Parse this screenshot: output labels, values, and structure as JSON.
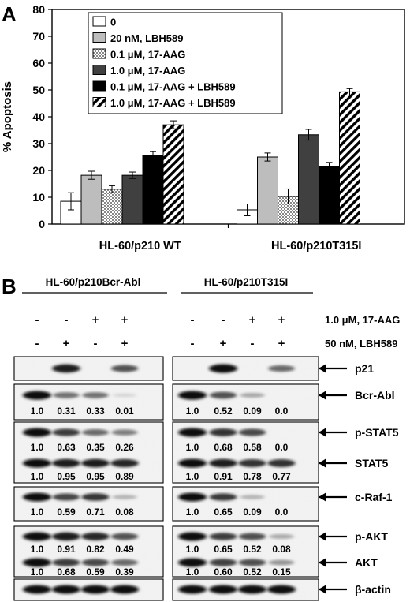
{
  "panel_a": {
    "label": "A",
    "chart_data": {
      "type": "bar",
      "xlabel": "",
      "ylabel": "% Apoptosis",
      "ylim": [
        0,
        80
      ],
      "yticks": [
        0,
        10,
        20,
        30,
        40,
        50,
        60,
        70,
        80
      ],
      "grid": false,
      "legend_position": "top-left",
      "categories": [
        "HL-60/p210 WT",
        "HL-60/p210T315I"
      ],
      "series": [
        {
          "name": "0",
          "values": [
            8.5,
            5.3
          ],
          "errors": [
            3.2,
            2.2
          ],
          "fill": "white"
        },
        {
          "name": "20 nM, LBH589",
          "values": [
            18.2,
            25.0
          ],
          "errors": [
            1.5,
            1.5
          ],
          "fill": "lightgray"
        },
        {
          "name": "0.1 μM, 17-AAG",
          "values": [
            13.0,
            10.3
          ],
          "errors": [
            1.3,
            2.8
          ],
          "fill": "checker"
        },
        {
          "name": "1.0 μM, 17-AAG",
          "values": [
            18.2,
            33.3
          ],
          "errors": [
            1.2,
            2.0
          ],
          "fill": "darkgray"
        },
        {
          "name": "0.1 μM, 17-AAG + LBH589",
          "values": [
            25.5,
            21.5
          ],
          "errors": [
            1.5,
            1.5
          ],
          "fill": "black"
        },
        {
          "name": "1.0 μM, 17-AAG + LBH589",
          "values": [
            37.0,
            49.3
          ],
          "errors": [
            1.5,
            1.2
          ],
          "fill": "hatch"
        }
      ]
    }
  },
  "panel_b": {
    "label": "B",
    "left_title": "HL-60/p210Bcr-Abl",
    "right_title": "HL-60/p210T315I",
    "treatments": [
      {
        "name": "1.0 μM, 17-AAG",
        "marks": [
          "-",
          "-",
          "+",
          "+"
        ]
      },
      {
        "name": "50 nM, LBH589",
        "marks": [
          "-",
          "+",
          "-",
          "+"
        ]
      }
    ],
    "blots": [
      {
        "name": "p21",
        "left_values": [],
        "right_values": []
      },
      {
        "name": "Bcr-Abl",
        "left_values": [
          "1.0",
          "0.31",
          "0.33",
          "0.01"
        ],
        "right_values": [
          "1.0",
          "0.52",
          "0.09",
          "0.0"
        ]
      },
      {
        "name": "p-STAT5",
        "left_values": [
          "1.0",
          "0.63",
          "0.35",
          "0.26"
        ],
        "right_values": [
          "1.0",
          "0.68",
          "0.58",
          "0.0"
        ]
      },
      {
        "name": "STAT5",
        "left_values": [
          "1.0",
          "0.95",
          "0.95",
          "0.89"
        ],
        "right_values": [
          "1.0",
          "0.91",
          "0.78",
          "0.77"
        ]
      },
      {
        "name": "c-Raf-1",
        "left_values": [
          "1.0",
          "0.59",
          "0.71",
          "0.08"
        ],
        "right_values": [
          "1.0",
          "0.65",
          "0.09",
          "0.0"
        ]
      },
      {
        "name": "p-AKT",
        "left_values": [
          "1.0",
          "0.91",
          "0.82",
          "0.49"
        ],
        "right_values": [
          "1.0",
          "0.65",
          "0.52",
          "0.08"
        ]
      },
      {
        "name": "AKT",
        "left_values": [
          "1.0",
          "0.68",
          "0.59",
          "0.39"
        ],
        "right_values": [
          "1.0",
          "0.60",
          "0.52",
          "0.15"
        ]
      },
      {
        "name": "β-actin",
        "left_values": [],
        "right_values": []
      }
    ],
    "band_intensities": {
      "p21": {
        "left": [
          0.0,
          0.95,
          0.0,
          0.7
        ],
        "right": [
          0.0,
          1.0,
          0.0,
          0.6
        ]
      },
      "Bcr-Abl": {
        "left": [
          1.0,
          0.55,
          0.55,
          0.1
        ],
        "right": [
          1.0,
          0.7,
          0.3,
          0.0
        ]
      },
      "p-STAT5": {
        "left": [
          1.0,
          0.8,
          0.6,
          0.5
        ],
        "right": [
          1.0,
          0.85,
          0.75,
          0.0
        ]
      },
      "STAT5": {
        "left": [
          1.0,
          0.95,
          0.95,
          0.9
        ],
        "right": [
          1.0,
          0.95,
          0.85,
          0.85
        ]
      },
      "c-Raf-1": {
        "left": [
          1.0,
          0.75,
          0.82,
          0.25
        ],
        "right": [
          1.0,
          0.8,
          0.25,
          0.0
        ]
      },
      "p-AKT": {
        "left": [
          1.0,
          0.95,
          0.9,
          0.7
        ],
        "right": [
          1.0,
          0.8,
          0.72,
          0.3
        ]
      },
      "AKT": {
        "left": [
          1.0,
          0.8,
          0.75,
          0.6
        ],
        "right": [
          1.0,
          0.78,
          0.72,
          0.4
        ]
      },
      "β-actin": {
        "left": [
          1.0,
          1.0,
          1.0,
          1.0
        ],
        "right": [
          1.0,
          1.0,
          1.0,
          1.0
        ]
      }
    }
  }
}
